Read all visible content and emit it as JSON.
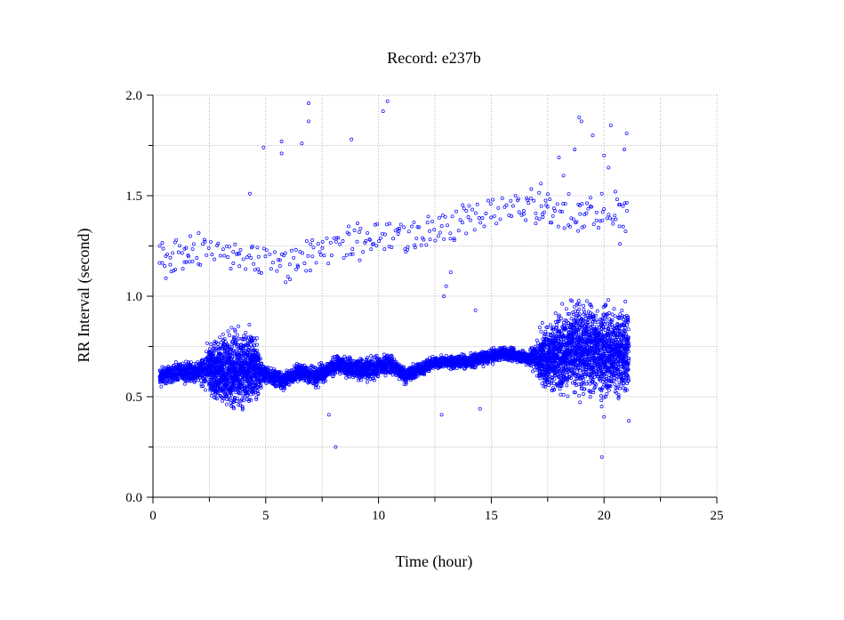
{
  "chart_data": {
    "type": "scatter",
    "title": "Record:  e237b",
    "xlabel": "Time (hour)",
    "ylabel": "RR Interval (second)",
    "xlim": [
      0,
      25
    ],
    "ylim": [
      0.0,
      2.0
    ],
    "xticks": [
      0,
      5,
      10,
      15,
      20,
      25
    ],
    "xtick_labels": [
      "0",
      "5",
      "10",
      "15",
      "20",
      "25"
    ],
    "yticks": [
      0.0,
      0.5,
      1.0,
      1.5,
      2.0
    ],
    "ytick_labels": [
      "0.0",
      "0.5",
      "1.0",
      "1.5",
      "2.0"
    ],
    "grid": true,
    "marker_color": "#0000ff",
    "dense_band": [
      {
        "x": 0.3,
        "lo": 0.54,
        "hi": 0.66
      },
      {
        "x": 1.0,
        "lo": 0.56,
        "hi": 0.68
      },
      {
        "x": 2.0,
        "lo": 0.56,
        "hi": 0.69
      },
      {
        "x": 2.4,
        "lo": 0.5,
        "hi": 0.78
      },
      {
        "x": 3.0,
        "lo": 0.4,
        "hi": 0.85
      },
      {
        "x": 3.8,
        "lo": 0.38,
        "hi": 0.89
      },
      {
        "x": 4.5,
        "lo": 0.41,
        "hi": 0.88
      },
      {
        "x": 4.9,
        "lo": 0.56,
        "hi": 0.67
      },
      {
        "x": 5.8,
        "lo": 0.52,
        "hi": 0.64
      },
      {
        "x": 6.5,
        "lo": 0.57,
        "hi": 0.68
      },
      {
        "x": 7.2,
        "lo": 0.53,
        "hi": 0.67
      },
      {
        "x": 8.2,
        "lo": 0.6,
        "hi": 0.72
      },
      {
        "x": 9.5,
        "lo": 0.55,
        "hi": 0.71
      },
      {
        "x": 10.5,
        "lo": 0.6,
        "hi": 0.73
      },
      {
        "x": 11.2,
        "lo": 0.55,
        "hi": 0.66
      },
      {
        "x": 12.5,
        "lo": 0.63,
        "hi": 0.71
      },
      {
        "x": 14.0,
        "lo": 0.63,
        "hi": 0.72
      },
      {
        "x": 15.5,
        "lo": 0.67,
        "hi": 0.76
      },
      {
        "x": 16.6,
        "lo": 0.65,
        "hi": 0.74
      },
      {
        "x": 17.3,
        "lo": 0.5,
        "hi": 0.88
      },
      {
        "x": 18.0,
        "lo": 0.46,
        "hi": 0.98
      },
      {
        "x": 19.0,
        "lo": 0.44,
        "hi": 1.04
      },
      {
        "x": 20.0,
        "lo": 0.43,
        "hi": 1.02
      },
      {
        "x": 21.1,
        "lo": 0.44,
        "hi": 1.0
      }
    ],
    "upper_trend": [
      {
        "x": 0.3,
        "y": 1.18
      },
      {
        "x": 2.0,
        "y": 1.22
      },
      {
        "x": 4.0,
        "y": 1.2
      },
      {
        "x": 6.0,
        "y": 1.16
      },
      {
        "x": 8.0,
        "y": 1.24
      },
      {
        "x": 10.0,
        "y": 1.3
      },
      {
        "x": 12.0,
        "y": 1.3
      },
      {
        "x": 13.0,
        "y": 1.34
      },
      {
        "x": 15.0,
        "y": 1.42
      },
      {
        "x": 17.0,
        "y": 1.45
      },
      {
        "x": 19.0,
        "y": 1.4
      },
      {
        "x": 21.0,
        "y": 1.42
      }
    ],
    "outliers": [
      {
        "x": 6.9,
        "y": 1.96
      },
      {
        "x": 6.9,
        "y": 1.87
      },
      {
        "x": 10.4,
        "y": 1.97
      },
      {
        "x": 10.2,
        "y": 1.92
      },
      {
        "x": 5.7,
        "y": 1.77
      },
      {
        "x": 5.7,
        "y": 1.71
      },
      {
        "x": 6.6,
        "y": 1.76
      },
      {
        "x": 8.8,
        "y": 1.78
      },
      {
        "x": 4.9,
        "y": 1.74
      },
      {
        "x": 18.9,
        "y": 1.89
      },
      {
        "x": 19.0,
        "y": 1.87
      },
      {
        "x": 19.5,
        "y": 1.8
      },
      {
        "x": 20.3,
        "y": 1.85
      },
      {
        "x": 21.0,
        "y": 1.81
      },
      {
        "x": 20.9,
        "y": 1.73
      },
      {
        "x": 18.7,
        "y": 1.73
      },
      {
        "x": 20.0,
        "y": 1.7
      },
      {
        "x": 20.2,
        "y": 1.64
      },
      {
        "x": 18.0,
        "y": 1.69
      },
      {
        "x": 17.2,
        "y": 1.56
      },
      {
        "x": 18.2,
        "y": 1.6
      },
      {
        "x": 19.9,
        "y": 1.51
      },
      {
        "x": 20.5,
        "y": 1.52
      },
      {
        "x": 4.3,
        "y": 1.51
      },
      {
        "x": 8.1,
        "y": 0.25
      },
      {
        "x": 19.9,
        "y": 0.2
      },
      {
        "x": 20.0,
        "y": 0.4
      },
      {
        "x": 21.1,
        "y": 0.38
      },
      {
        "x": 12.8,
        "y": 0.41
      },
      {
        "x": 14.5,
        "y": 0.44
      },
      {
        "x": 7.8,
        "y": 0.41
      },
      {
        "x": 12.9,
        "y": 1.0
      },
      {
        "x": 14.3,
        "y": 0.93
      },
      {
        "x": 13.0,
        "y": 1.05
      },
      {
        "x": 13.2,
        "y": 1.12
      },
      {
        "x": 20.7,
        "y": 1.26
      },
      {
        "x": 20.4,
        "y": 1.36
      },
      {
        "x": 19.4,
        "y": 1.49
      }
    ]
  }
}
